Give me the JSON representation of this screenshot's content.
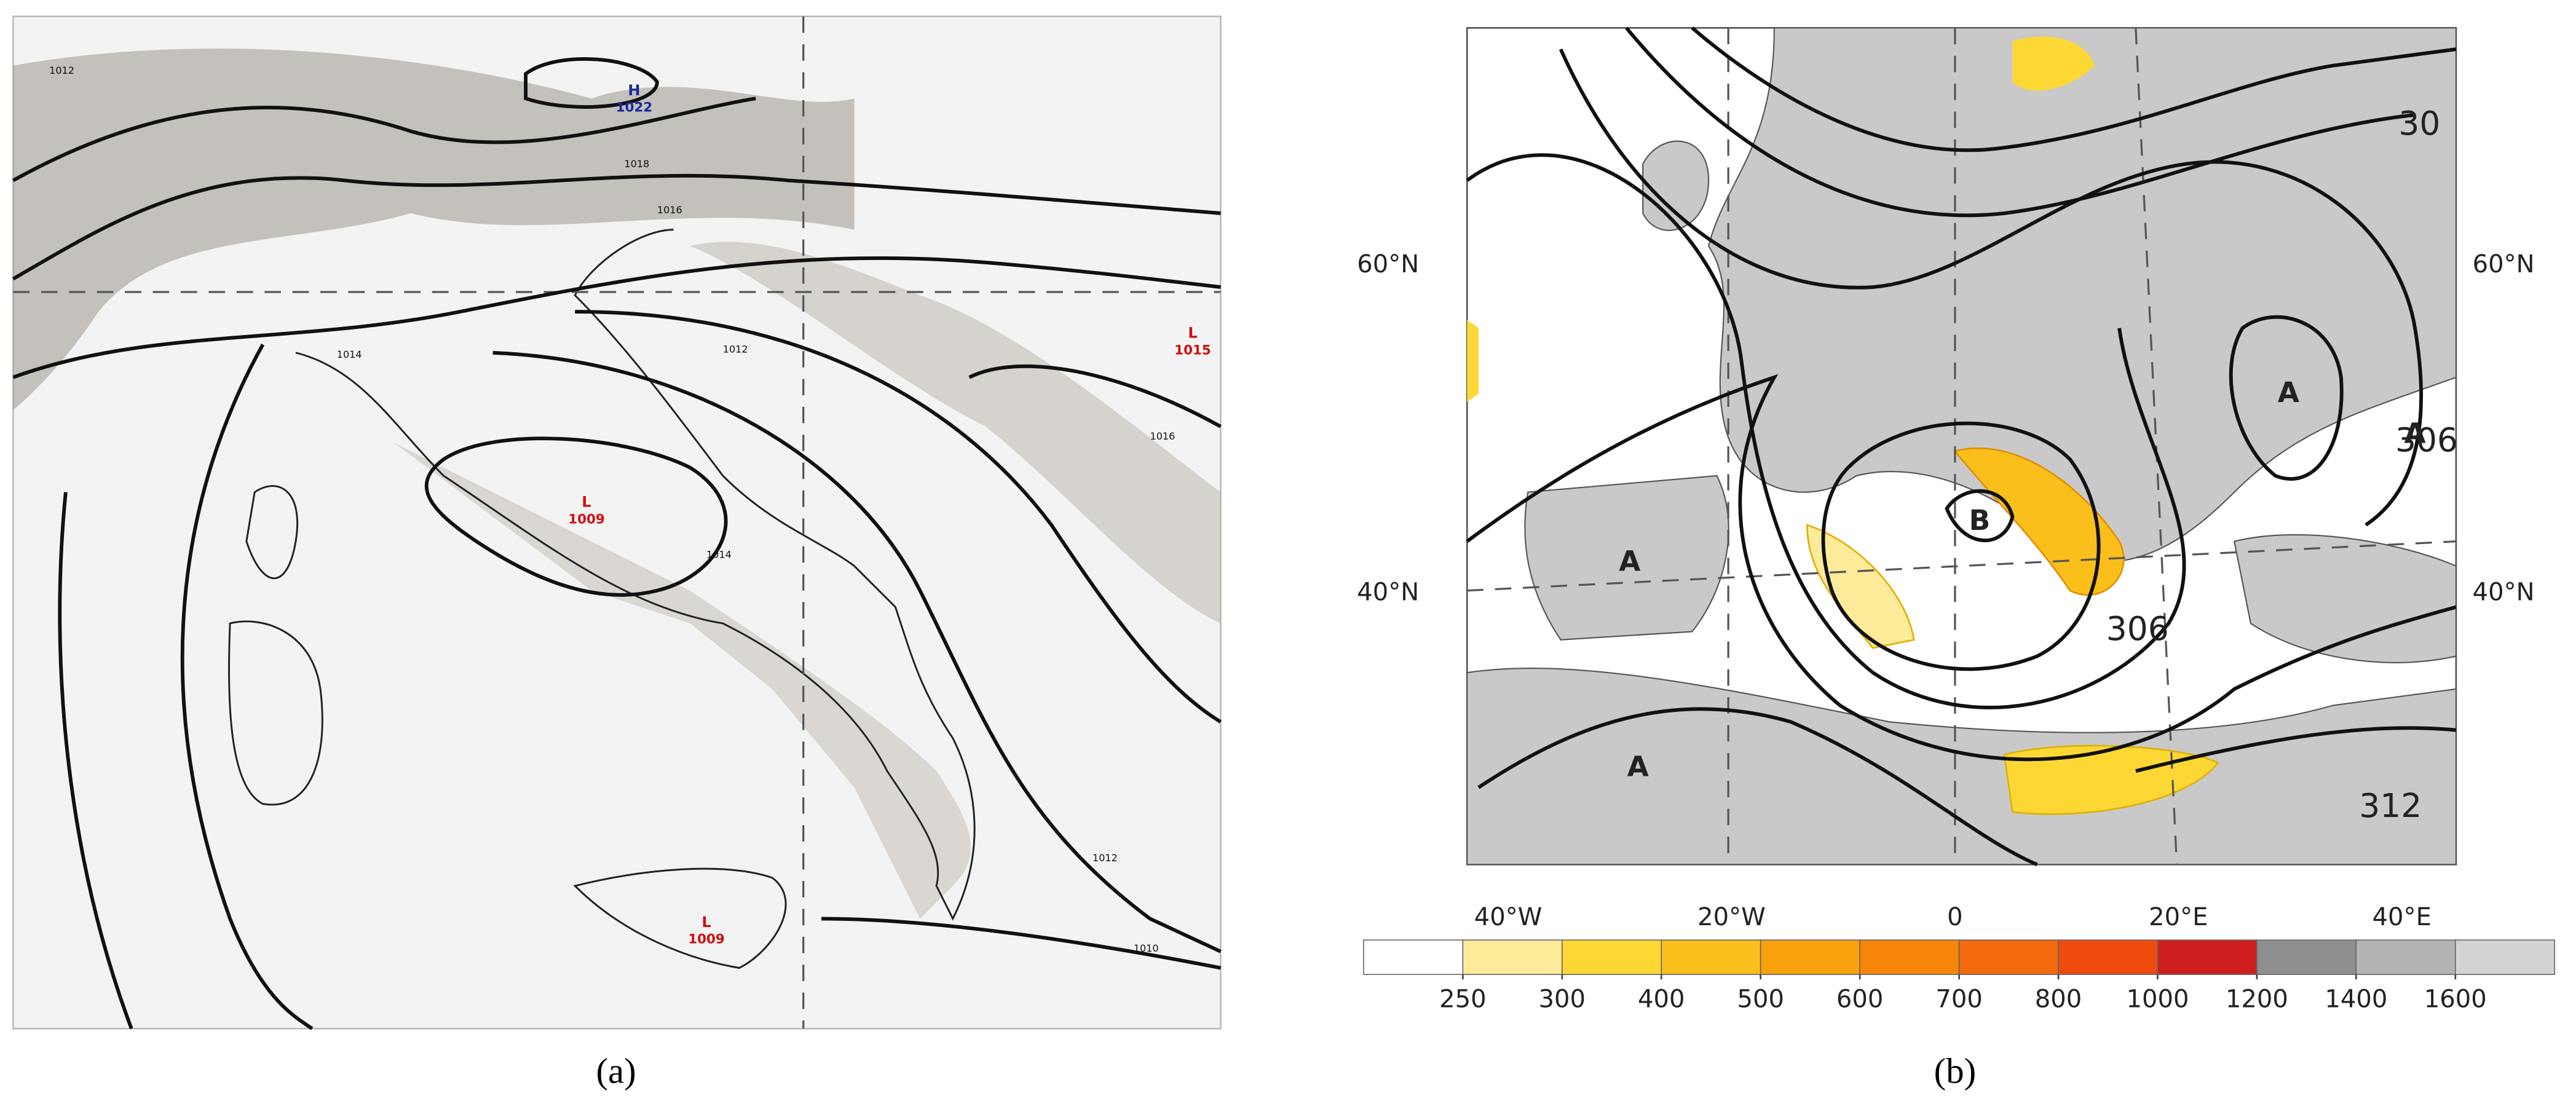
{
  "panel_a": {
    "label": "(a)",
    "centers": [
      {
        "letter": "H",
        "value": "1022"
      },
      {
        "letter": "L",
        "value": "1015"
      },
      {
        "letter": "L",
        "value": "1009"
      },
      {
        "letter": "L",
        "value": "1009"
      }
    ],
    "isobar_labels": [
      "1012",
      "1016",
      "1018",
      "1016",
      "1014",
      "1012",
      "1010",
      "1014",
      "1012"
    ]
  },
  "panel_b": {
    "label": "(b)",
    "lat_labels": [
      "60°N",
      "40°N"
    ],
    "lon_labels": [
      "40°W",
      "20°W",
      "0",
      "20°E",
      "40°E"
    ],
    "contour_labels": [
      "30",
      "306",
      "306",
      "312"
    ],
    "centers": [
      "A",
      "A",
      "A",
      "A",
      "B"
    ],
    "colorbar": {
      "ticks": [
        250,
        300,
        400,
        500,
        600,
        700,
        800,
        1000,
        1200,
        1400,
        1600
      ],
      "colors": [
        "#ffffff",
        "#fdeb9a",
        "#fdd835",
        "#fbbf1c",
        "#f9a20e",
        "#f7860b",
        "#f26a0d",
        "#ef4b0e",
        "#cf1f1f",
        "#8f8f8f",
        "#b3b3b3",
        "#d3d3d3"
      ]
    }
  }
}
